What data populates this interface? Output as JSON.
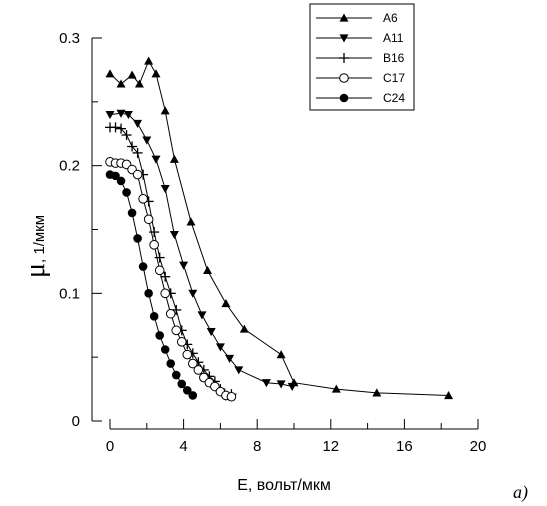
{
  "chart_data": {
    "type": "line",
    "xlabel": "E, вольт/мкм",
    "ylabel_symbol": "μ",
    "ylabel_unit": ", 1/мкм",
    "panel_label": "a)",
    "xlim": [
      0,
      20
    ],
    "ylim": [
      0,
      0.3
    ],
    "xticks": [
      0,
      4,
      8,
      12,
      16,
      20
    ],
    "yticks": [
      0,
      0.1,
      0.2,
      0.3
    ],
    "xtick_labels": [
      "0",
      "4",
      "8",
      "12",
      "16",
      "20"
    ],
    "ytick_labels": [
      "0",
      "0.1",
      "0.2",
      "0.3"
    ],
    "grid": false,
    "legend_position": "top-right",
    "series": [
      {
        "name": "A6",
        "marker": "triangle-up",
        "x": [
          0,
          0.6,
          1.2,
          1.6,
          2.1,
          2.5,
          3.0,
          3.5,
          4.4,
          5.3,
          6.3,
          7.3,
          9.3,
          10.0,
          12.3,
          14.5,
          18.4
        ],
        "y": [
          0.272,
          0.264,
          0.271,
          0.264,
          0.282,
          0.272,
          0.243,
          0.205,
          0.156,
          0.118,
          0.092,
          0.072,
          0.052,
          0.03,
          0.025,
          0.022,
          0.02
        ]
      },
      {
        "name": "A11",
        "marker": "triangle-down",
        "x": [
          0,
          0.6,
          1.0,
          1.5,
          2.0,
          2.5,
          3.0,
          3.5,
          4.0,
          4.5,
          5.0,
          5.5,
          6.0,
          6.5,
          7.0,
          8.5,
          9.3,
          9.9
        ],
        "y": [
          0.24,
          0.241,
          0.24,
          0.233,
          0.22,
          0.205,
          0.182,
          0.146,
          0.122,
          0.1,
          0.083,
          0.07,
          0.058,
          0.049,
          0.04,
          0.03,
          0.029,
          0.027
        ]
      },
      {
        "name": "B16",
        "marker": "plus",
        "x": [
          0,
          0.3,
          0.6,
          0.9,
          1.2,
          1.5,
          1.8,
          2.1,
          2.4,
          2.7,
          3.0,
          3.3,
          3.6,
          3.9,
          4.2,
          4.5,
          4.8,
          5.1,
          5.4,
          5.7,
          6.0,
          6.3,
          6.6
        ],
        "y": [
          0.23,
          0.23,
          0.229,
          0.224,
          0.215,
          0.21,
          0.193,
          0.172,
          0.148,
          0.128,
          0.113,
          0.1,
          0.087,
          0.071,
          0.06,
          0.053,
          0.046,
          0.04,
          0.035,
          0.031,
          0.025,
          0.02,
          0.021
        ]
      },
      {
        "name": "C17",
        "marker": "circle-open",
        "x": [
          0,
          0.3,
          0.6,
          0.9,
          1.2,
          1.5,
          1.8,
          2.1,
          2.4,
          2.7,
          3.0,
          3.3,
          3.6,
          3.9,
          4.2,
          4.5,
          4.8,
          5.1,
          5.4,
          5.7,
          6.0,
          6.3,
          6.6
        ],
        "y": [
          0.203,
          0.202,
          0.202,
          0.201,
          0.197,
          0.193,
          0.174,
          0.158,
          0.138,
          0.118,
          0.1,
          0.084,
          0.071,
          0.062,
          0.052,
          0.045,
          0.04,
          0.034,
          0.03,
          0.027,
          0.023,
          0.02,
          0.019
        ]
      },
      {
        "name": "C24",
        "marker": "circle-filled",
        "x": [
          0,
          0.3,
          0.6,
          0.9,
          1.2,
          1.5,
          1.8,
          2.1,
          2.4,
          2.7,
          3.0,
          3.3,
          3.6,
          3.9,
          4.2,
          4.5
        ],
        "y": [
          0.193,
          0.192,
          0.188,
          0.179,
          0.163,
          0.143,
          0.121,
          0.1,
          0.082,
          0.067,
          0.056,
          0.045,
          0.036,
          0.029,
          0.024,
          0.02
        ]
      }
    ]
  }
}
